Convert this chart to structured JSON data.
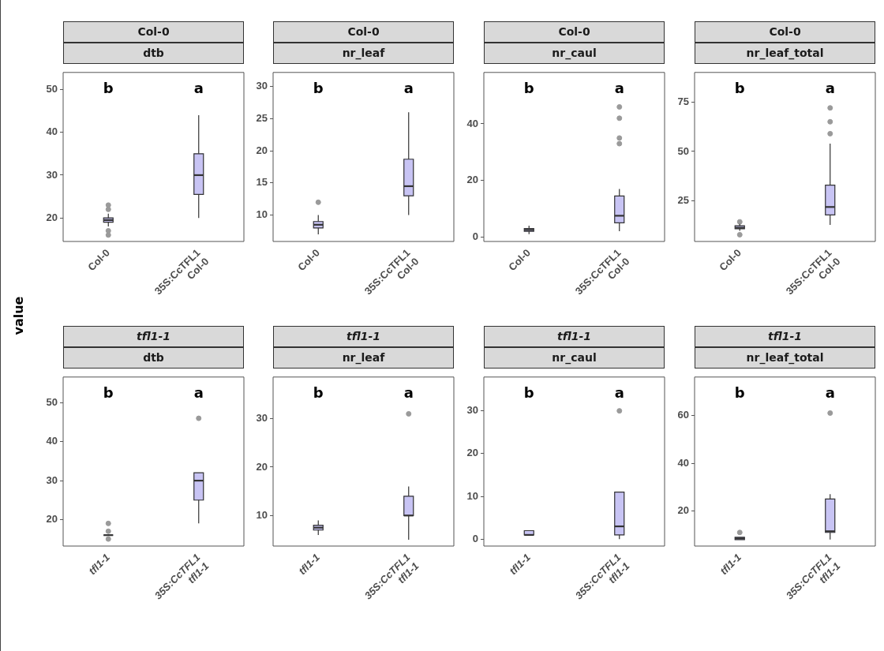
{
  "chart_data": [
    {
      "type": "box",
      "title": "Col-0",
      "subtitle": "dtb",
      "ylabel": "value",
      "categories": [
        "Col-0",
        "35S:CcTFL1\nCol-0"
      ],
      "color": "#c8c4f4",
      "ylim": [
        14.5,
        54
      ],
      "yticks": [
        20,
        30,
        40,
        50
      ],
      "grid": false,
      "boxes": [
        {
          "low": 18,
          "q1": 19,
          "median": 19.5,
          "q3": 20,
          "high": 21,
          "outliers": [
            16,
            17,
            22,
            23
          ]
        },
        {
          "low": 20,
          "q1": 25.5,
          "median": 30,
          "q3": 35,
          "high": 44
        }
      ],
      "annotations": [
        "b",
        "a"
      ]
    },
    {
      "type": "box",
      "title": "Col-0",
      "subtitle": "nr_leaf",
      "categories": [
        "Col-0",
        "35S:CcTFL1\nCol-0"
      ],
      "color": "#c8c4f4",
      "ylim": [
        5.9,
        32.2
      ],
      "yticks": [
        10,
        15,
        20,
        25,
        30
      ],
      "grid": false,
      "boxes": [
        {
          "low": 7,
          "q1": 8,
          "median": 8.5,
          "q3": 9,
          "high": 10,
          "outliers": [
            12
          ]
        },
        {
          "low": 10,
          "q1": 13,
          "median": 14.5,
          "q3": 18.7,
          "high": 26
        }
      ],
      "annotations": [
        "b",
        "a"
      ]
    },
    {
      "type": "box",
      "title": "Col-0",
      "subtitle": "nr_caul",
      "categories": [
        "Col-0",
        "35S:CcTFL1\nCol-0"
      ],
      "color": "#c8c4f4",
      "ylim": [
        -1.6,
        58.2
      ],
      "yticks": [
        0,
        20,
        40
      ],
      "grid": false,
      "boxes": [
        {
          "low": 1,
          "q1": 2,
          "median": 2.5,
          "q3": 3,
          "high": 4
        },
        {
          "low": 2,
          "q1": 5,
          "median": 7.5,
          "q3": 14.5,
          "high": 17,
          "outliers": [
            33,
            35,
            42,
            46
          ]
        }
      ],
      "annotations": [
        "b",
        "a"
      ]
    },
    {
      "type": "box",
      "title": "Col-0",
      "subtitle": "nr_leaf_total",
      "categories": [
        "Col-0",
        "35S:CcTFL1\nCol-0"
      ],
      "color": "#c8c4f4",
      "ylim": [
        4.6,
        89.9
      ],
      "yticks": [
        25,
        50,
        75
      ],
      "grid": false,
      "boxes": [
        {
          "low": 10,
          "q1": 11,
          "median": 11.5,
          "q3": 12.5,
          "high": 13.5,
          "outliers": [
            8,
            14.5
          ]
        },
        {
          "low": 13,
          "q1": 18,
          "median": 22,
          "q3": 33,
          "high": 54,
          "outliers": [
            59,
            65,
            72
          ]
        }
      ],
      "annotations": [
        "b",
        "a"
      ]
    },
    {
      "type": "box",
      "title": "tfl1-1",
      "subtitle": "dtb",
      "categories": [
        "tfl1-1",
        "35S:CcTFL1\ntfl1-1"
      ],
      "color": "#c8c4f4",
      "ylim": [
        13.2,
        56.6
      ],
      "yticks": [
        20,
        30,
        40,
        50
      ],
      "grid": false,
      "boxes": [
        {
          "low": 16,
          "q1": 16,
          "median": 16,
          "q3": 16,
          "high": 16,
          "outliers": [
            15,
            17,
            19
          ]
        },
        {
          "low": 19,
          "q1": 25,
          "median": 30,
          "q3": 32,
          "high": 32,
          "outliers": [
            46
          ]
        }
      ],
      "annotations": [
        "b",
        "a"
      ]
    },
    {
      "type": "box",
      "title": "tfl1-1",
      "subtitle": "nr_leaf",
      "categories": [
        "tfl1-1",
        "35S:CcTFL1\ntfl1-1"
      ],
      "color": "#c8c4f4",
      "ylim": [
        3.7,
        38.6
      ],
      "yticks": [
        10,
        20,
        30
      ],
      "grid": false,
      "boxes": [
        {
          "low": 6,
          "q1": 7,
          "median": 7.5,
          "q3": 8,
          "high": 9
        },
        {
          "low": 5,
          "q1": 10,
          "median": 10,
          "q3": 14,
          "high": 16,
          "outliers": [
            31
          ]
        }
      ],
      "annotations": [
        "b",
        "a"
      ]
    },
    {
      "type": "box",
      "title": "tfl1-1",
      "subtitle": "nr_caul",
      "categories": [
        "tfl1-1",
        "35S:CcTFL1\ntfl1-1"
      ],
      "color": "#c8c4f4",
      "ylim": [
        -1.6,
        37.9
      ],
      "yticks": [
        0,
        10,
        20,
        30
      ],
      "grid": false,
      "boxes": [
        {
          "low": 1,
          "q1": 1,
          "median": 1,
          "q3": 2,
          "high": 2
        },
        {
          "low": 0,
          "q1": 1,
          "median": 3,
          "q3": 11,
          "high": 11,
          "outliers": [
            30
          ]
        }
      ],
      "annotations": [
        "b",
        "a"
      ]
    },
    {
      "type": "box",
      "title": "tfl1-1",
      "subtitle": "nr_leaf_total",
      "categories": [
        "tfl1-1",
        "35S:CcTFL1\ntfl1-1"
      ],
      "color": "#c8c4f4",
      "ylim": [
        5.3,
        76.1
      ],
      "yticks": [
        20,
        40,
        60
      ],
      "grid": false,
      "boxes": [
        {
          "low": 8,
          "q1": 8,
          "median": 8.5,
          "q3": 9,
          "high": 9,
          "outliers": [
            11
          ]
        },
        {
          "low": 8,
          "q1": 11,
          "median": 11.5,
          "q3": 25,
          "high": 27,
          "outliers": [
            61
          ]
        }
      ],
      "annotations": [
        "b",
        "a"
      ]
    }
  ]
}
